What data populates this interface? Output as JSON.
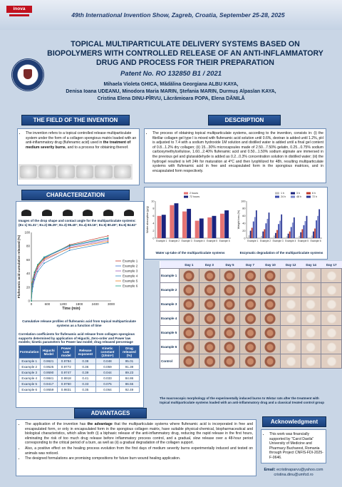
{
  "header": {
    "show_title": "49th International Invention Show, Zagreb, Croatia, September 25-28, 2025",
    "logo_text": "inova"
  },
  "title": "TOPICAL MULTIPARTICULATE DELIVERY SYSTEMS BASED ON BIOPOLYMERS WITH CONTROLLED RELEASE OF AN ANTI-INFLAMMATORY DRUG AND PROCESS FOR THEIR PREPARATION",
  "patent": "Patent No. RO 132850 B1 / 2021",
  "authors": [
    "Mihaela Violeta GHICA, Mădălina Georgiana ALBU KAYA,",
    "Denisa Ioana UDEANU, Minodora Maria MARIN, Ștefania MARIN, Durmuș Alpaslan KAYA,",
    "Cristina Elena DINU-PÎRVU, Lăcrămioara POPA, Elena DĂNILĂ"
  ],
  "sections": {
    "field": "THE FIELD OF THE INVENTION",
    "description": "DESCRIPTION",
    "characterization": "CHARACTERIZATION",
    "advantages": "ADVANTAGES",
    "acknowledgment": "Acknowledgment"
  },
  "field_text_a": "The invention refers to a topical controlled release multiparticulate system under the form of a collagen spongious matrix loaded with an anti-inflammatory drug (flufenamic acid) used in ",
  "field_text_b": "the treatment of medium severity burns",
  "field_text_c": ", and to a process for obtaining thereof.",
  "description_text": "The process of obtaining topical multiparticulate systems, according to the invention, consists in: (i) the fibrillar collagen gel type I is mixed with flufenamic acid solution until 0.6%, dextran is added until 1.2%, pH is adjusted to 7.4 with a sodium hydroxide 1M solution and distilled water is added until a final gel content of 0.8...1.2% dry collagen; (ii) 15...30% microcapsules made of 2.50...7.50% gelatin, 0.25...0.75% sodium carboxymethylcellulose, 1.60...2.40% flufenamic acid and 0.50...1.50% sodium alginate are immersed in the previous gel and glutaraldehyde is added as 0.2...0.3% concentration solution in distilled water; (iii) the hydrogel resulted is left 24h for maturation at 4°C and then lyophilized for 48h, resulting multiparticulate systems with flufenamic acid in free and encapsulated form in the spongious matrices, and in encapsulated form respectively.",
  "drops_caption": "Images of the drop shape and contact angle for the multiparticulate systems: (Ex 1) 91.31°; Ex.2) 86.29°; Ex.3) 95.40°; Ex.4) 83.16°; Ex.5) 80.49°; Ex.6) 84.62°",
  "release_caption": "Cumulative release profiles of flufenamic acid from topical multiparticulate systems as a function of time",
  "table_caption": "Correlation coefficients for flufenamic acid release from collagen spongious supports determined by application of Higuchi, Zero-order and Power law models; kinetic parameters for Power law model; drug released percentage",
  "table": {
    "headers": [
      "Formulation",
      "Higuchi Model",
      "Power Law model",
      "Release exponent",
      "Kinetic constant (1/minⁿ)",
      "Drug released (%)"
    ],
    "rows": [
      [
        "Example 1",
        "0.9621",
        "0.9784",
        "0.38",
        "0.048",
        "95.01"
      ],
      [
        "Example 2",
        "0.9525",
        "0.9772",
        "0.36",
        "0.059",
        "91.39"
      ],
      [
        "Example 3",
        "0.9590",
        "0.9747",
        "0.39",
        "0.044",
        "89.23"
      ],
      [
        "Example 4",
        "0.9841",
        "0.9918",
        "0.41",
        "0.033",
        "84.86"
      ],
      [
        "Example 5",
        "0.9417",
        "0.9760",
        "0.33",
        "0.075",
        "86.55"
      ],
      [
        "Example 6",
        "0.9559",
        "0.9831",
        "0.35",
        "0.064",
        "92.49"
      ]
    ]
  },
  "water_caption": "Water up-take of the multiparticulate systems",
  "enzyme_caption": "Enzymatic degradation of the multiparticulate systems",
  "macro_table": {
    "days": [
      "Day 1",
      "Day 3",
      "Day 5",
      "Day 7",
      "Day 10",
      "Day 12",
      "Day 14",
      "Day 17"
    ],
    "rows": [
      "Example 1",
      "Example 2",
      "Example 3",
      "Example 4",
      "Example 5",
      "Example 6",
      "Control"
    ]
  },
  "macro_caption": "The macroscopic morphology of the experimentally induced burns to Wistar rats after the treatment with topical multiparticulate systems loaded with an anti-inflammatory drug and a classical treated control group",
  "advantages": {
    "item1_a": "The application of the invention has ",
    "item1_b": "the advantage",
    "item1_c": " that the multiparticulate systems where flufenamic acid is incorporated in free and encapsulated form, or only in encapsulated form in the spongious collagen matrix, have suitable physical-chemical, biopharmaceutical and biological characteristics, which allow both (i) a biphasic release of the anti-inflammatory drug, reducing the rapid release in the first hours, eliminating the risk of too much drug release before inflammatory process control, and a gradual, slow release over a 48-hour period corresponding to the critical period of a burn, as well as (ii) a gradual degradation of the collagen support.",
    "item2": "Also, a positive effect on the healing process evolution from the first days of medium severity burns experimentally induced and tested on animals was noticed.",
    "item3": "The designed formulations are promising compositions for future burn wound healing application."
  },
  "acknowledgment_text": "This work was financially supported by \"Carol Davila\" University of Medicine and Pharmacy Bucharest, Romania through Project CNFIS-FDI-2025-F-0646.",
  "email_label": "Email:",
  "emails": [
    "ecristinaparvu@yahoo.com",
    "cristina.dinu@umfcd.ro"
  ],
  "chart_data": [
    {
      "type": "line",
      "xlabel": "Time (min)",
      "ylabel": "Flufenamic acid cumulative released (%)",
      "xlim": [
        0,
        3000
      ],
      "ylim": [
        0,
        100
      ],
      "xticks": [
        0,
        600,
        1200,
        1800,
        2400,
        3000
      ],
      "yticks": [
        0,
        20,
        40,
        60,
        80,
        100
      ],
      "legend_position": "right",
      "series": [
        {
          "name": "Example 1",
          "color": "#c0392b",
          "x": [
            0,
            30,
            60,
            120,
            240,
            480,
            1440,
            2880
          ],
          "values": [
            0,
            20,
            28,
            38,
            50,
            62,
            82,
            95
          ]
        },
        {
          "name": "Example 2",
          "color": "#3b6fd0",
          "x": [
            0,
            30,
            60,
            120,
            240,
            480,
            1440,
            2880
          ],
          "values": [
            0,
            24,
            31,
            41,
            52,
            63,
            80,
            91
          ]
        },
        {
          "name": "Example 3",
          "color": "#9b59b6",
          "x": [
            0,
            30,
            60,
            120,
            240,
            480,
            1440,
            2880
          ],
          "values": [
            0,
            18,
            25,
            35,
            47,
            59,
            78,
            89
          ]
        },
        {
          "name": "Example 4",
          "color": "#2e86c1",
          "x": [
            0,
            30,
            60,
            120,
            240,
            480,
            1440,
            2880
          ],
          "values": [
            0,
            14,
            21,
            31,
            43,
            55,
            74,
            85
          ]
        },
        {
          "name": "Example 5",
          "color": "#e67e22",
          "x": [
            0,
            30,
            60,
            120,
            240,
            480,
            1440,
            2880
          ],
          "values": [
            0,
            27,
            33,
            42,
            52,
            61,
            77,
            87
          ]
        },
        {
          "name": "Example 6",
          "color": "#16a085",
          "x": [
            0,
            30,
            60,
            120,
            240,
            480,
            1440,
            2880
          ],
          "values": [
            0,
            25,
            32,
            42,
            53,
            64,
            81,
            92
          ]
        }
      ]
    },
    {
      "type": "bar",
      "ylabel": "Water absorption (g/g)",
      "ylim": [
        0,
        10
      ],
      "yticks": [
        0,
        2,
        4,
        6,
        8,
        10
      ],
      "categories": [
        "Example 1",
        "Example 2",
        "Example 3",
        "Example 4",
        "Example 5",
        "Example 6"
      ],
      "series": [
        {
          "name": "2 hours",
          "color": "#e57373",
          "values": [
            6.0,
            8.9,
            7.2,
            4.7,
            5.6,
            6.6
          ]
        },
        {
          "name": "72 hours",
          "color": "#1a237e",
          "values": [
            6.3,
            9.4,
            7.9,
            5.3,
            6.0,
            7.5
          ]
        }
      ]
    },
    {
      "type": "bar",
      "ylabel": "Weight loss (%)",
      "ylim": [
        0,
        100
      ],
      "yticks": [
        0,
        20,
        40,
        60,
        80,
        100
      ],
      "categories": [
        "Example 1",
        "Example 2",
        "Example 3",
        "Example 4",
        "Example 5",
        "Example 6"
      ],
      "series": [
        {
          "name": "1 h",
          "color": "#bdbdbd",
          "values": [
            8,
            6,
            7,
            5,
            6,
            7
          ]
        },
        {
          "name": "3 h",
          "color": "#1a237e",
          "values": [
            20,
            18,
            14,
            12,
            16,
            18
          ]
        },
        {
          "name": "6 h",
          "color": "#c0392b",
          "values": [
            28,
            24,
            22,
            18,
            24,
            26
          ]
        },
        {
          "name": "24 h",
          "color": "#3949ab",
          "values": [
            45,
            40,
            38,
            30,
            35,
            48
          ]
        },
        {
          "name": "48 h",
          "color": "#7986cb",
          "values": [
            57,
            52,
            47,
            42,
            46,
            60
          ]
        },
        {
          "name": "72 h",
          "color": "#283593",
          "values": [
            75,
            69,
            64,
            56,
            60,
            78
          ]
        }
      ]
    }
  ]
}
